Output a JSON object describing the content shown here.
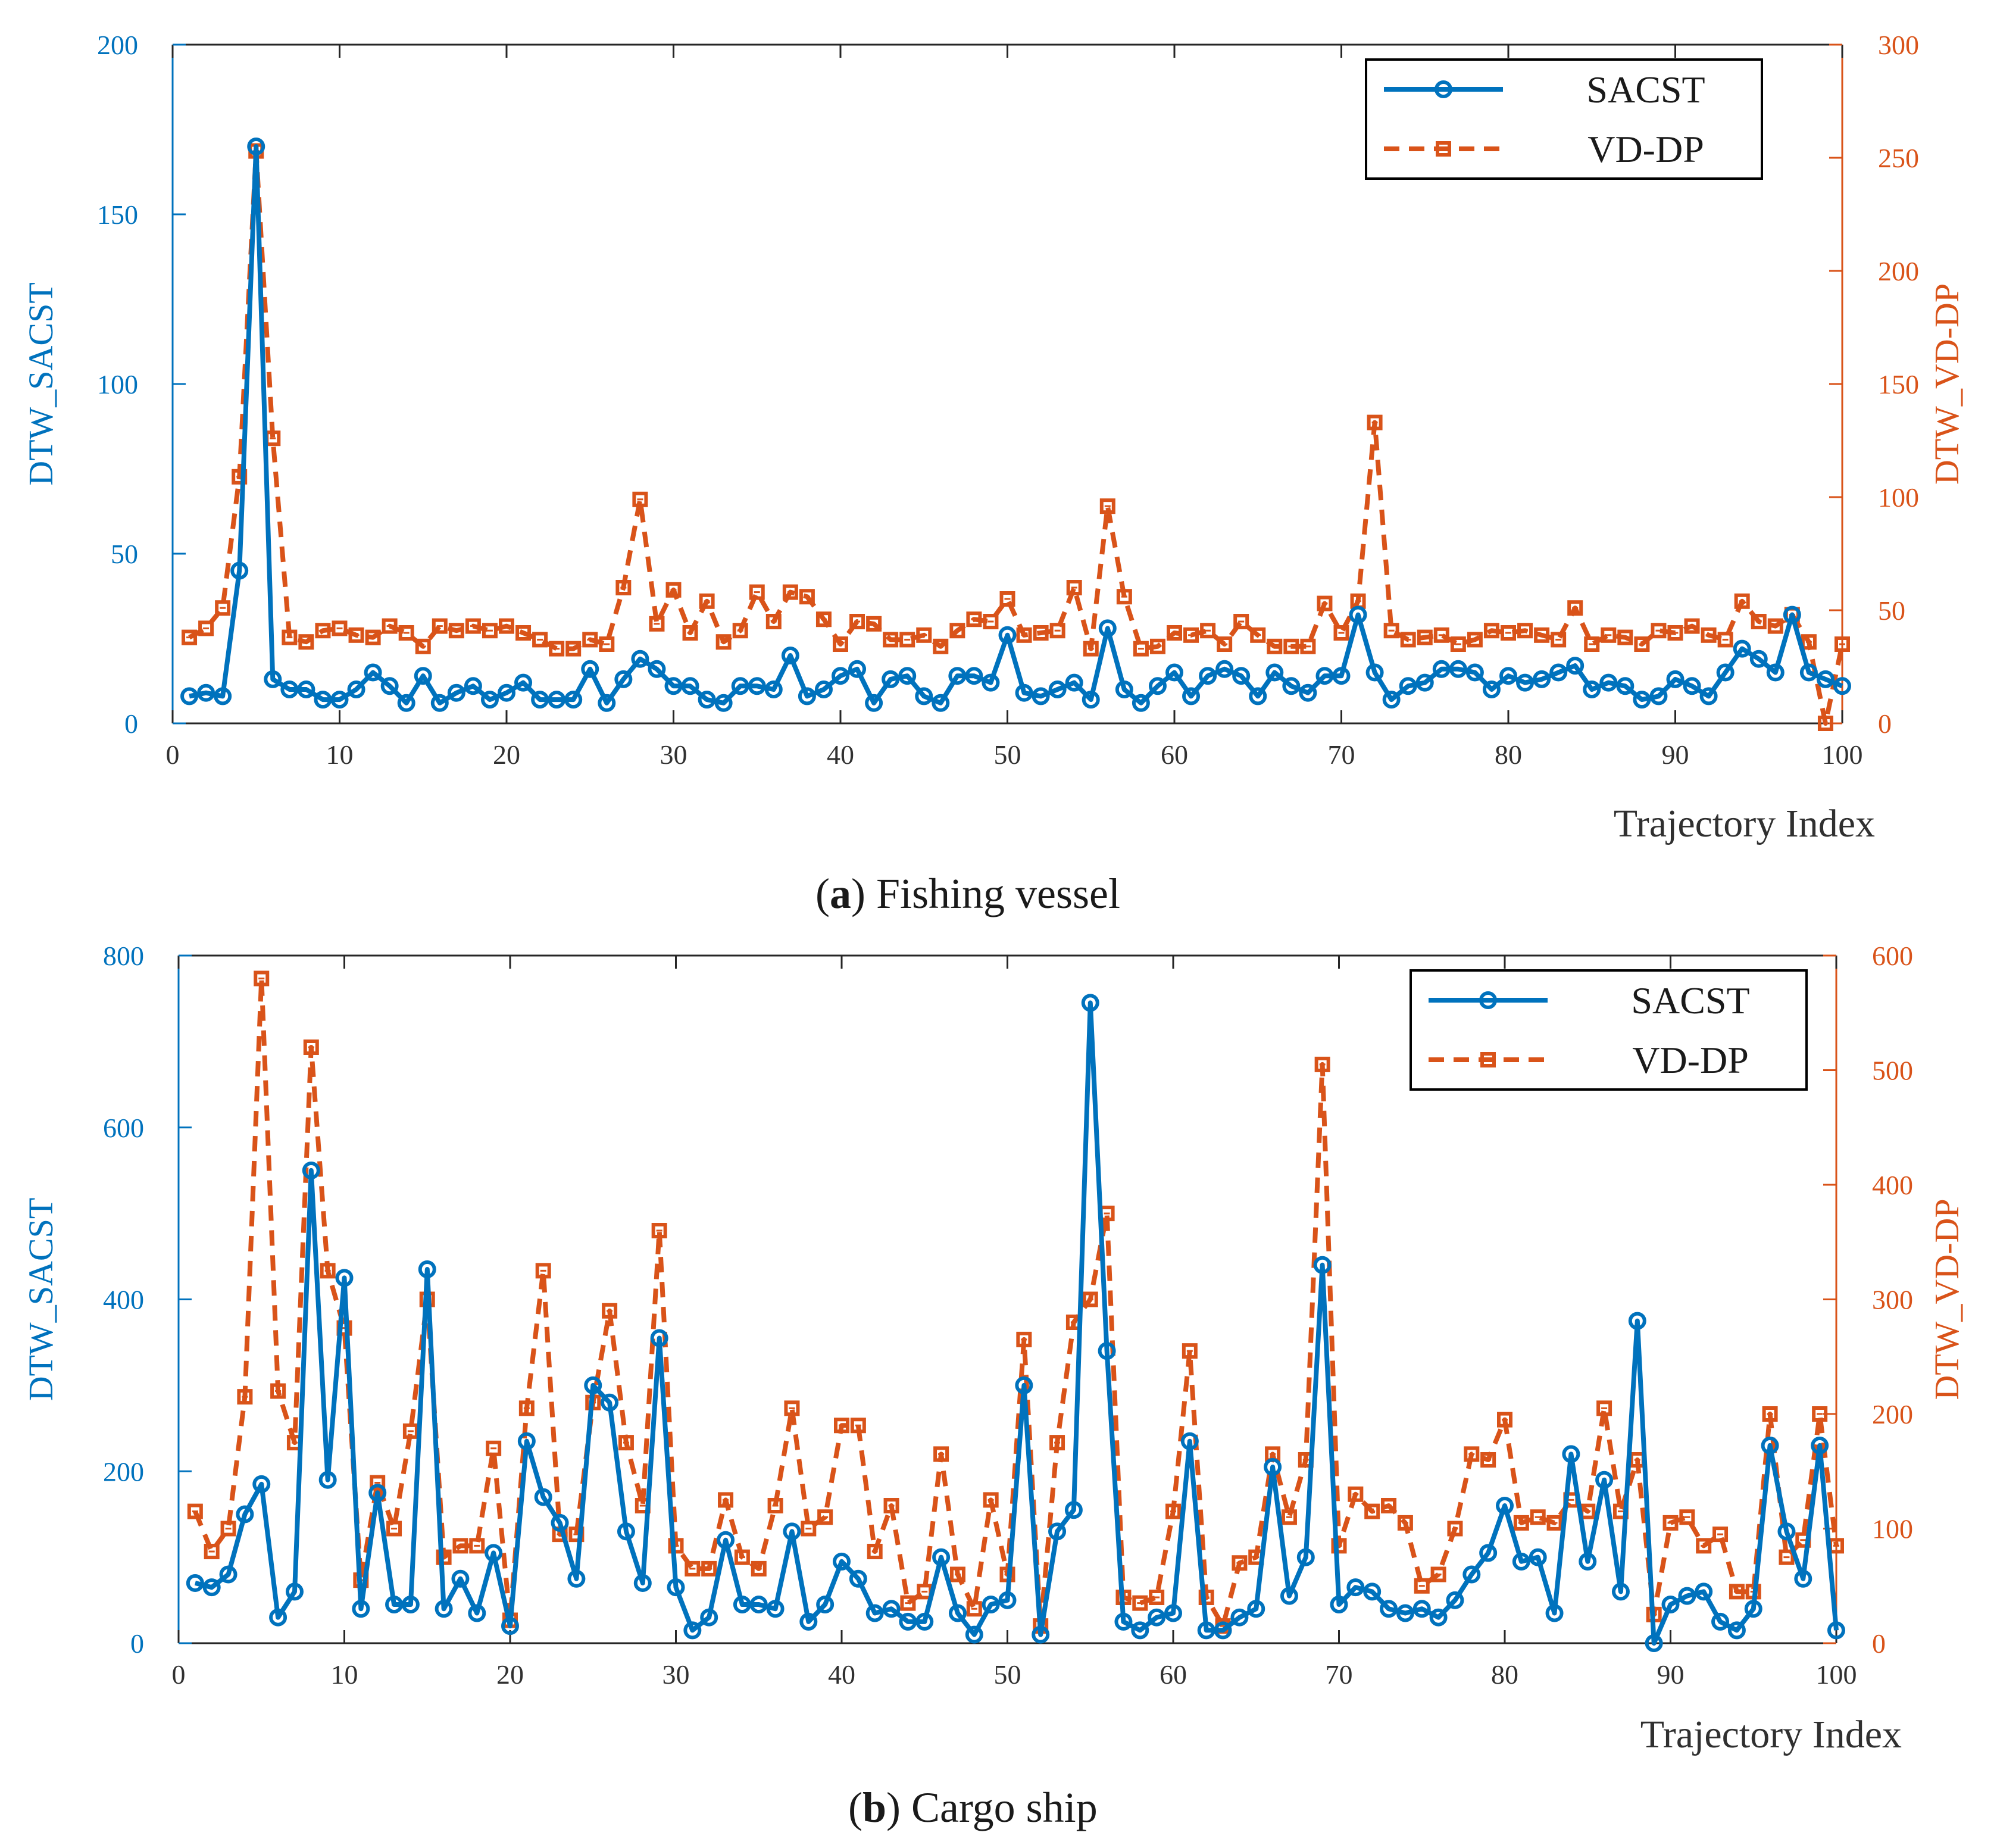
{
  "colors": {
    "sacst": "#0072BD",
    "vddp": "#D95319",
    "axis": "#262626",
    "caption": "#1a1a1a"
  },
  "chart_data": [
    {
      "id": "a",
      "type": "line",
      "caption_letter": "a",
      "caption_text": ") Fishing vessel",
      "caption_open": "(",
      "title": "",
      "xlabel": "Trajectory Index",
      "ylabel_left": "DTW_SACST",
      "ylabel_right": "DTW_VD-DP",
      "xlim": [
        0,
        100
      ],
      "ylim_left": [
        0,
        200
      ],
      "ylim_right": [
        0,
        300
      ],
      "xticks": [
        0,
        10,
        20,
        30,
        40,
        50,
        60,
        70,
        80,
        90,
        100
      ],
      "yticks_left": [
        0,
        50,
        100,
        150,
        200
      ],
      "yticks_right": [
        0,
        50,
        100,
        150,
        200,
        250,
        300
      ],
      "legend": {
        "position": "top-right",
        "entries": [
          "SACST",
          "VD-DP"
        ]
      },
      "x": [
        1,
        2,
        3,
        4,
        5,
        6,
        7,
        8,
        9,
        10,
        11,
        12,
        13,
        14,
        15,
        16,
        17,
        18,
        19,
        20,
        21,
        22,
        23,
        24,
        25,
        26,
        27,
        28,
        29,
        30,
        31,
        32,
        33,
        34,
        35,
        36,
        37,
        38,
        39,
        40,
        41,
        42,
        43,
        44,
        45,
        46,
        47,
        48,
        49,
        50,
        51,
        52,
        53,
        54,
        55,
        56,
        57,
        58,
        59,
        60,
        61,
        62,
        63,
        64,
        65,
        66,
        67,
        68,
        69,
        70,
        71,
        72,
        73,
        74,
        75,
        76,
        77,
        78,
        79,
        80,
        81,
        82,
        83,
        84,
        85,
        86,
        87,
        88,
        89,
        90,
        91,
        92,
        93,
        94,
        95,
        96,
        97,
        98,
        99,
        100
      ],
      "series": [
        {
          "name": "SACST",
          "axis": "left",
          "marker": "circle",
          "line": "solid",
          "values": [
            8,
            9,
            8,
            45,
            170,
            13,
            10,
            10,
            7,
            7,
            10,
            15,
            11,
            6,
            14,
            6,
            9,
            11,
            7,
            9,
            12,
            7,
            7,
            7,
            16,
            6,
            13,
            19,
            16,
            11,
            11,
            7,
            6,
            11,
            11,
            10,
            20,
            8,
            10,
            14,
            16,
            6,
            13,
            14,
            8,
            6,
            14,
            14,
            12,
            26,
            9,
            8,
            10,
            12,
            7,
            28,
            10,
            6,
            11,
            15,
            8,
            14,
            16,
            14,
            8,
            15,
            11,
            9,
            14,
            14,
            32,
            15,
            7,
            11,
            12,
            16,
            16,
            15,
            10,
            14,
            12,
            13,
            15,
            17,
            10,
            12,
            11,
            7,
            8,
            13,
            11,
            8,
            15,
            22,
            19,
            15,
            32,
            15,
            13,
            11
          ]
        },
        {
          "name": "VD-DP",
          "axis": "right",
          "marker": "square",
          "line": "dashed",
          "values": [
            38,
            42,
            51,
            109,
            253,
            126,
            38,
            36,
            41,
            42,
            39,
            38,
            43,
            40,
            34,
            43,
            41,
            43,
            41,
            43,
            40,
            37,
            33,
            33,
            37,
            35,
            60,
            99,
            44,
            59,
            40,
            54,
            36,
            41,
            58,
            45,
            58,
            56,
            46,
            35,
            45,
            44,
            37,
            37,
            39,
            34,
            41,
            46,
            45,
            55,
            39,
            40,
            41,
            60,
            33,
            96,
            56,
            33,
            34,
            40,
            39,
            41,
            35,
            45,
            39,
            34,
            34,
            34,
            53,
            40,
            54,
            133,
            41,
            37,
            38,
            39,
            35,
            37,
            41,
            40,
            41,
            39,
            37,
            51,
            35,
            39,
            38,
            35,
            41,
            40,
            43,
            39,
            37,
            54,
            45,
            43,
            48,
            36,
            0,
            35
          ]
        }
      ]
    },
    {
      "id": "b",
      "type": "line",
      "caption_letter": "b",
      "caption_text": ") Cargo ship",
      "caption_open": "(",
      "title": "",
      "xlabel": "Trajectory Index",
      "ylabel_left": "DTW_SACST",
      "ylabel_right": "DTW_VD-DP",
      "xlim": [
        0,
        100
      ],
      "ylim_left": [
        0,
        800
      ],
      "ylim_right": [
        0,
        600
      ],
      "xticks": [
        0,
        10,
        20,
        30,
        40,
        50,
        60,
        70,
        80,
        90,
        100
      ],
      "yticks_left": [
        0,
        200,
        400,
        600,
        800
      ],
      "yticks_right": [
        0,
        100,
        200,
        300,
        400,
        500,
        600
      ],
      "legend": {
        "position": "top-right",
        "entries": [
          "SACST",
          "VD-DP"
        ]
      },
      "x": [
        1,
        2,
        3,
        4,
        5,
        6,
        7,
        8,
        9,
        10,
        11,
        12,
        13,
        14,
        15,
        16,
        17,
        18,
        19,
        20,
        21,
        22,
        23,
        24,
        25,
        26,
        27,
        28,
        29,
        30,
        31,
        32,
        33,
        34,
        35,
        36,
        37,
        38,
        39,
        40,
        41,
        42,
        43,
        44,
        45,
        46,
        47,
        48,
        49,
        50,
        51,
        52,
        53,
        54,
        55,
        56,
        57,
        58,
        59,
        60,
        61,
        62,
        63,
        64,
        65,
        66,
        67,
        68,
        69,
        70,
        71,
        72,
        73,
        74,
        75,
        76,
        77,
        78,
        79,
        80,
        81,
        82,
        83,
        84,
        85,
        86,
        87,
        88,
        89,
        90,
        91,
        92,
        93,
        94,
        95,
        96,
        97,
        98,
        99,
        100
      ],
      "series": [
        {
          "name": "SACST",
          "axis": "left",
          "marker": "circle",
          "line": "solid",
          "values": [
            70,
            65,
            80,
            150,
            185,
            30,
            60,
            550,
            190,
            425,
            40,
            175,
            45,
            45,
            435,
            40,
            75,
            35,
            105,
            20,
            235,
            170,
            140,
            75,
            300,
            280,
            130,
            70,
            355,
            65,
            15,
            30,
            120,
            45,
            45,
            40,
            130,
            25,
            45,
            95,
            75,
            35,
            40,
            25,
            25,
            100,
            35,
            10,
            45,
            50,
            300,
            10,
            130,
            155,
            745,
            340,
            25,
            15,
            30,
            35,
            235,
            15,
            15,
            30,
            40,
            205,
            55,
            100,
            440,
            45,
            65,
            60,
            40,
            35,
            40,
            30,
            50,
            80,
            105,
            160,
            95,
            100,
            35,
            220,
            95,
            190,
            60,
            375,
            0,
            45,
            55,
            60,
            25,
            15,
            40,
            230,
            130,
            75,
            230,
            15
          ]
        },
        {
          "name": "VD-DP",
          "axis": "right",
          "marker": "square",
          "line": "dashed",
          "values": [
            115,
            80,
            100,
            215,
            580,
            220,
            175,
            520,
            325,
            275,
            55,
            140,
            100,
            185,
            300,
            75,
            85,
            85,
            170,
            20,
            205,
            325,
            95,
            95,
            210,
            290,
            175,
            120,
            360,
            85,
            65,
            65,
            125,
            75,
            65,
            120,
            205,
            100,
            110,
            190,
            190,
            80,
            120,
            35,
            45,
            165,
            60,
            30,
            125,
            60,
            265,
            15,
            175,
            280,
            300,
            375,
            40,
            35,
            40,
            115,
            255,
            40,
            15,
            70,
            75,
            165,
            110,
            160,
            505,
            85,
            130,
            115,
            120,
            105,
            50,
            60,
            100,
            165,
            160,
            195,
            105,
            110,
            105,
            125,
            115,
            205,
            115,
            160,
            25,
            105,
            110,
            85,
            95,
            45,
            45,
            200,
            75,
            90,
            200,
            85
          ]
        }
      ]
    }
  ]
}
